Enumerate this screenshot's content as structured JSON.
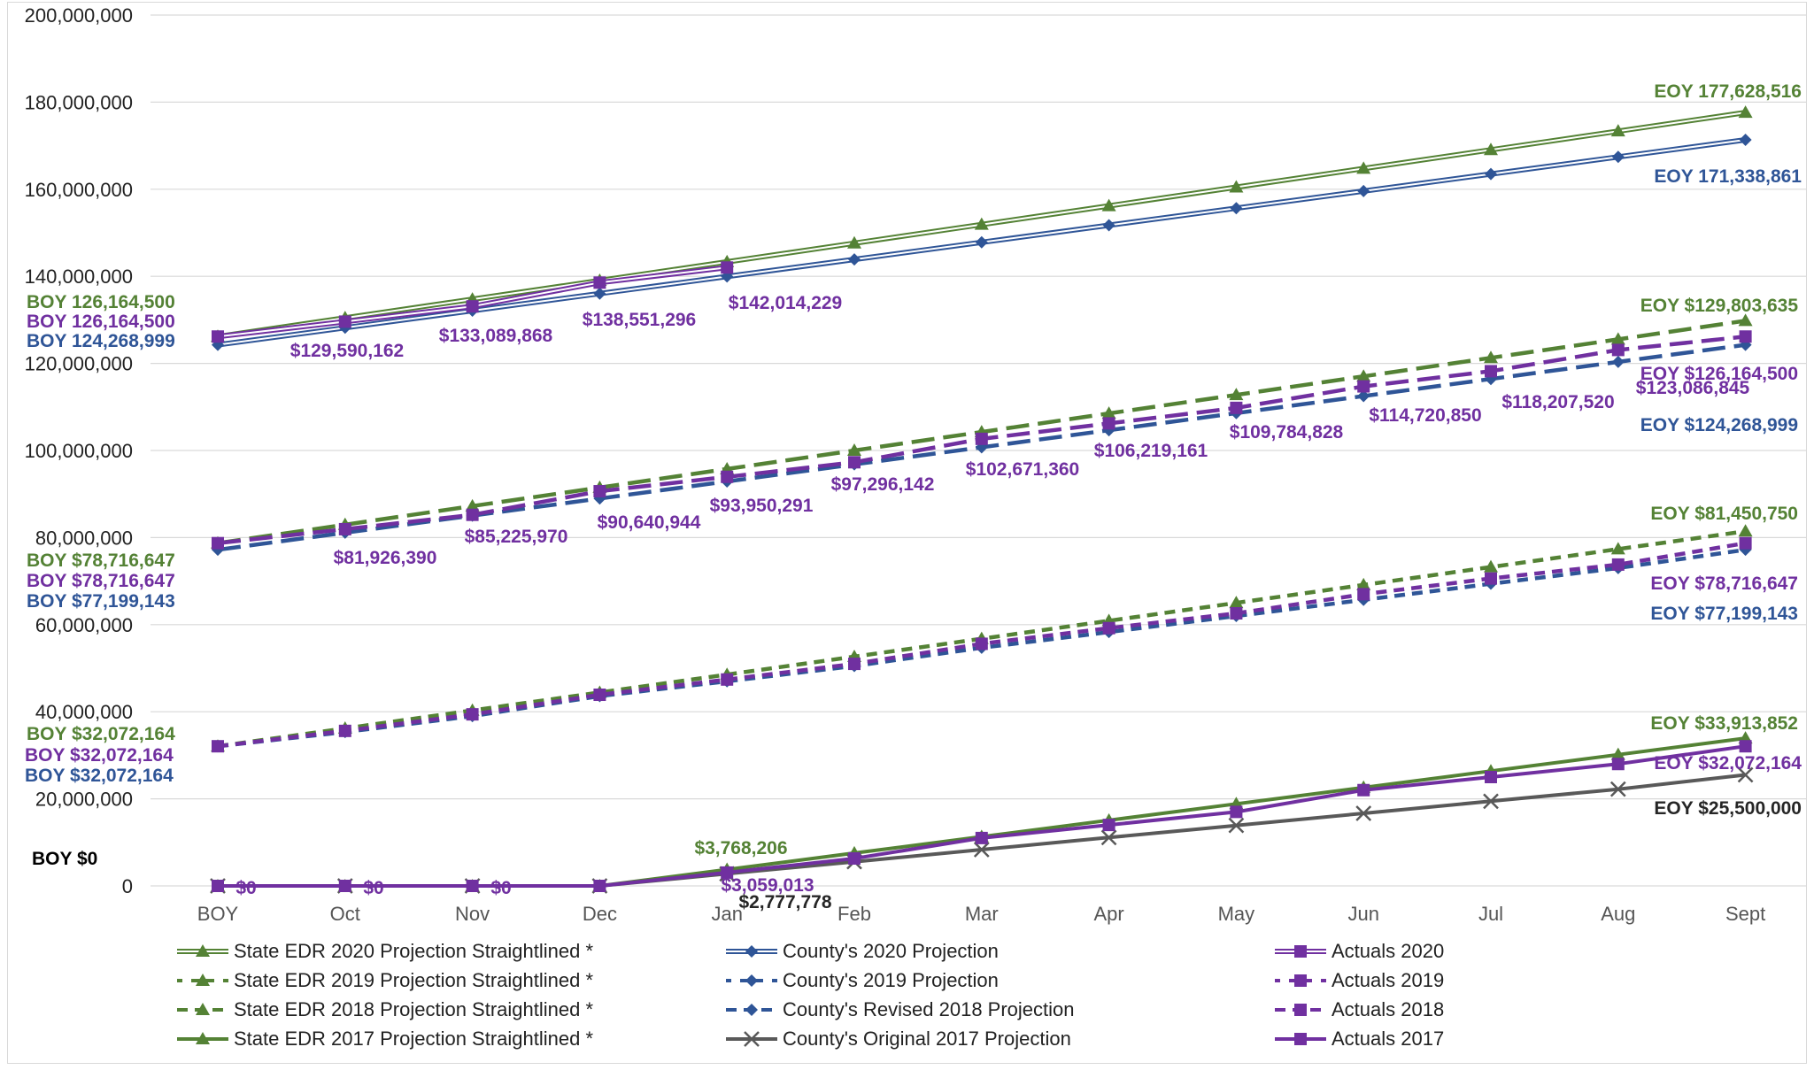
{
  "chart_data": {
    "type": "line",
    "title": "",
    "xlabel": "",
    "ylabel": "",
    "ylim": [
      0,
      200000000
    ],
    "yticks": [
      "0",
      "20,000,000",
      "40,000,000",
      "60,000,000",
      "80,000,000",
      "100,000,000",
      "120,000,000",
      "140,000,000",
      "160,000,000",
      "180,000,000",
      "200,000,000"
    ],
    "categories": [
      "BOY",
      "Oct",
      "Nov",
      "Dec",
      "Jan",
      "Feb",
      "Mar",
      "Apr",
      "May",
      "Jun",
      "Jul",
      "Aug",
      "Sept"
    ],
    "grid": true,
    "legend_position": "bottom",
    "colors": {
      "green": "#548235",
      "blue": "#2f5597",
      "purple": "#7030a0",
      "gray": "#595959"
    },
    "series": [
      {
        "name": "State EDR 2020 Projection Straightlined *",
        "color": "#548235",
        "style": "double",
        "marker": "triangle",
        "values": [
          126164500,
          130453168,
          134741836,
          139030504,
          143319172,
          147607840,
          151896508,
          156185176,
          160473844,
          164762512,
          169051180,
          173339848,
          177628516
        ]
      },
      {
        "name": "County's 2020 Projection",
        "color": "#2f5597",
        "style": "double",
        "marker": "diamond",
        "values": [
          124268999,
          128191488,
          132113976,
          136036464,
          139958952,
          143881440,
          147803928,
          151726416,
          155648904,
          159571392,
          163493880,
          167416368,
          171338861
        ]
      },
      {
        "name": "Actuals 2020",
        "color": "#7030a0",
        "style": "double",
        "marker": "square",
        "values": [
          126164500,
          129590162,
          133089868,
          138551296,
          142014229,
          null,
          null,
          null,
          null,
          null,
          null,
          null,
          null
        ]
      },
      {
        "name": "State EDR 2019 Projection Straightlined *",
        "color": "#548235",
        "style": "longdash",
        "marker": "triangle",
        "values": [
          78716647,
          82973063,
          87229479,
          91485895,
          95742311,
          99998727,
          104255143,
          108511559,
          112767975,
          117024391,
          121280807,
          125537223,
          129803635
        ]
      },
      {
        "name": "County's 2019 Projection",
        "color": "#2f5597",
        "style": "longdash",
        "marker": "diamond",
        "values": [
          77199143,
          81121631,
          85044119,
          88966607,
          92889095,
          96811583,
          100734071,
          104656559,
          108579047,
          112501535,
          116424023,
          120346511,
          124268999
        ]
      },
      {
        "name": "Actuals 2019",
        "color": "#7030a0",
        "style": "longdash",
        "marker": "square",
        "values": [
          78716647,
          81926390,
          85225970,
          90640944,
          93950291,
          97296142,
          102671360,
          106219161,
          109784828,
          114720850,
          118207520,
          123086845,
          126164500
        ]
      },
      {
        "name": "State EDR 2018 Projection Straightlined *",
        "color": "#548235",
        "style": "shortdash",
        "marker": "triangle",
        "values": [
          32072164,
          36188713,
          40305262,
          44421811,
          48538360,
          52654909,
          56771458,
          60888007,
          65004556,
          69121105,
          73237654,
          77354203,
          81450750
        ]
      },
      {
        "name": "County's Revised 2018 Projection",
        "color": "#2f5597",
        "style": "shortdash",
        "marker": "diamond",
        "values": [
          32072164,
          35349000,
          39000000,
          43600000,
          47000000,
          50500000,
          54700000,
          58300000,
          62000000,
          65700000,
          69400000,
          73000000,
          77199143
        ]
      },
      {
        "name": "Actuals 2018",
        "color": "#7030a0",
        "style": "shortdash",
        "marker": "square",
        "values": [
          32072164,
          35600000,
          39400000,
          43900000,
          47400000,
          51000000,
          55600000,
          59200000,
          62600000,
          67000000,
          70600000,
          73800000,
          78716647
        ]
      },
      {
        "name": "State EDR 2017 Projection Straightlined *",
        "color": "#548235",
        "style": "solid",
        "marker": "triangle",
        "values": [
          0,
          0,
          0,
          0,
          3768206,
          7536412,
          11304618,
          15072824,
          18841030,
          22609236,
          26377442,
          30145648,
          33913852
        ]
      },
      {
        "name": "County's Original 2017 Projection",
        "color": "#595959",
        "style": "solid",
        "marker": "x",
        "values": [
          0,
          0,
          0,
          0,
          2777778,
          5555556,
          8333333,
          11111111,
          13888889,
          16666667,
          19444444,
          22222222,
          25500000
        ]
      },
      {
        "name": "Actuals 2017",
        "color": "#7030a0",
        "style": "solid",
        "marker": "square",
        "values": [
          0,
          0,
          0,
          0,
          3059013,
          6300000,
          11000000,
          14000000,
          17000000,
          22000000,
          25000000,
          28000000,
          32072164
        ]
      }
    ],
    "annotations": {
      "boy": [
        {
          "text": "BOY 126,164,500",
          "color": "#548235"
        },
        {
          "text": "BOY 126,164,500",
          "color": "#7030a0"
        },
        {
          "text": "BOY 124,268,999",
          "color": "#2f5597"
        },
        {
          "text": "BOY $78,716,647",
          "color": "#548235"
        },
        {
          "text": "BOY $78,716,647",
          "color": "#7030a0"
        },
        {
          "text": "BOY $77,199,143",
          "color": "#2f5597"
        },
        {
          "text": "BOY $32,072,164",
          "color": "#548235"
        },
        {
          "text": "BOY $32,072,164",
          "color": "#7030a0"
        },
        {
          "text": "BOY $32,072,164",
          "color": "#2f5597"
        },
        {
          "text": "BOY $0",
          "color": "#000000"
        }
      ],
      "eoy": [
        {
          "text": "EOY 177,628,516",
          "color": "#548235"
        },
        {
          "text": "EOY 171,338,861",
          "color": "#2f5597"
        },
        {
          "text": "EOY $129,803,635",
          "color": "#548235"
        },
        {
          "text": "EOY $126,164,500",
          "color": "#7030a0"
        },
        {
          "text": "EOY $124,268,999",
          "color": "#2f5597"
        },
        {
          "text": "EOY $81,450,750",
          "color": "#548235"
        },
        {
          "text": "EOY $78,716,647",
          "color": "#7030a0"
        },
        {
          "text": "EOY $77,199,143",
          "color": "#2f5597"
        },
        {
          "text": "EOY $33,913,852",
          "color": "#548235"
        },
        {
          "text": "EOY $32,072,164",
          "color": "#7030a0"
        },
        {
          "text": "EOY $25,500,000",
          "color": "#262626"
        }
      ],
      "points": [
        {
          "text": "$129,590,162",
          "color": "#7030a0"
        },
        {
          "text": "$133,089,868",
          "color": "#7030a0"
        },
        {
          "text": "$138,551,296",
          "color": "#7030a0"
        },
        {
          "text": "$142,014,229",
          "color": "#7030a0"
        },
        {
          "text": "$81,926,390",
          "color": "#7030a0"
        },
        {
          "text": "$85,225,970",
          "color": "#7030a0"
        },
        {
          "text": "$90,640,944",
          "color": "#7030a0"
        },
        {
          "text": "$93,950,291",
          "color": "#7030a0"
        },
        {
          "text": "$97,296,142",
          "color": "#7030a0"
        },
        {
          "text": "$102,671,360",
          "color": "#7030a0"
        },
        {
          "text": "$106,219,161",
          "color": "#7030a0"
        },
        {
          "text": "$109,784,828",
          "color": "#7030a0"
        },
        {
          "text": "$114,720,850",
          "color": "#7030a0"
        },
        {
          "text": "$118,207,520",
          "color": "#7030a0"
        },
        {
          "text": "$123,086,845",
          "color": "#7030a0"
        },
        {
          "text": "$0",
          "color": "#7030a0"
        },
        {
          "text": "$0",
          "color": "#7030a0"
        },
        {
          "text": "$0",
          "color": "#7030a0"
        },
        {
          "text": "$3,768,206",
          "color": "#548235"
        },
        {
          "text": "$3,059,013",
          "color": "#7030a0"
        },
        {
          "text": "$2,777,778",
          "color": "#262626"
        }
      ]
    }
  }
}
